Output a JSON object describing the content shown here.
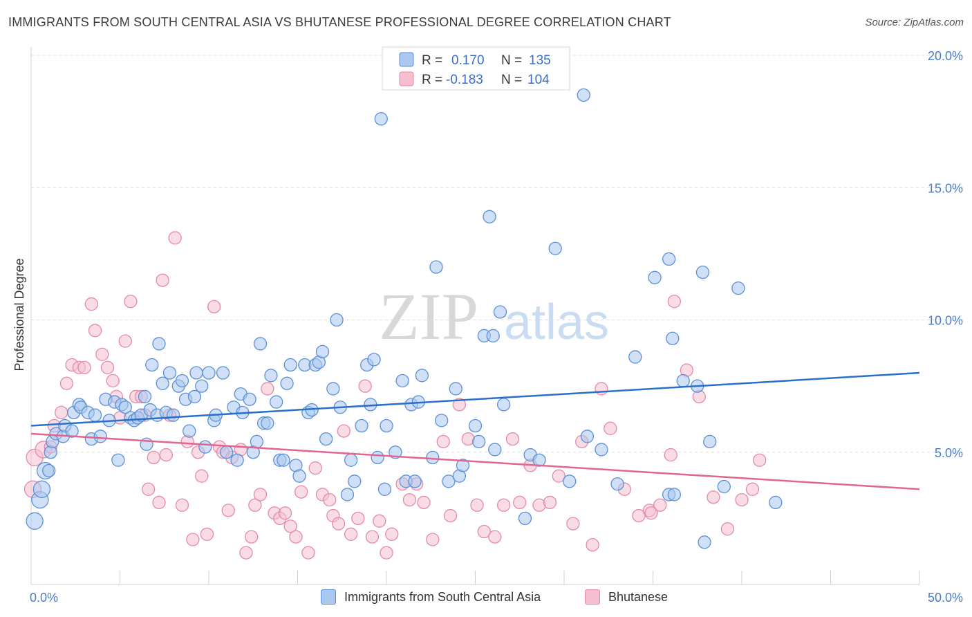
{
  "title": "IMMIGRANTS FROM SOUTH CENTRAL ASIA VS BHUTANESE PROFESSIONAL DEGREE CORRELATION CHART",
  "source": "Source: ZipAtlas.com",
  "watermark": {
    "zip": "ZIP",
    "atlas": "atlas"
  },
  "colors": {
    "blue_fill": "#aac8f0",
    "blue_stroke": "#5b8fd6",
    "blue_line": "#2a6fcb",
    "pink_fill": "#f6bfd0",
    "pink_stroke": "#e48aa8",
    "pink_line": "#e06690",
    "grid": "#dcdcdc",
    "tick_text": "#4a7cc7"
  },
  "legend": {
    "r_label": "R =",
    "n_label": "N =",
    "rows": [
      {
        "r": "0.170",
        "n": "135"
      },
      {
        "r": "-0.183",
        "n": "104"
      }
    ]
  },
  "chart_data": {
    "type": "scatter",
    "title": "IMMIGRANTS FROM SOUTH CENTRAL ASIA VS BHUTANESE PROFESSIONAL DEGREE CORRELATION CHART",
    "xlabel": "",
    "ylabel": "Professional Degree",
    "xlim": [
      0,
      50
    ],
    "ylim": [
      0,
      20
    ],
    "x_tick_labels": [
      "0.0%",
      "50.0%"
    ],
    "y_ticks": [
      5,
      10,
      15,
      20
    ],
    "y_tick_labels": [
      "5.0%",
      "10.0%",
      "15.0%",
      "20.0%"
    ],
    "grid": true,
    "legend_position": "top-center",
    "series": [
      {
        "name": "Immigrants from South Central Asia",
        "r": 0.17,
        "n": 135,
        "trend": [
          [
            0,
            6.0
          ],
          [
            50,
            8.0
          ]
        ],
        "points": [
          [
            0.2,
            2.4
          ],
          [
            0.5,
            3.2
          ],
          [
            0.6,
            3.6
          ],
          [
            0.8,
            4.3
          ],
          [
            1.0,
            4.3
          ],
          [
            1.1,
            5.0
          ],
          [
            1.2,
            5.4
          ],
          [
            1.4,
            5.7
          ],
          [
            1.8,
            5.6
          ],
          [
            1.9,
            6.0
          ],
          [
            2.3,
            5.8
          ],
          [
            2.4,
            6.5
          ],
          [
            2.7,
            6.8
          ],
          [
            2.8,
            6.7
          ],
          [
            3.2,
            6.5
          ],
          [
            3.4,
            5.5
          ],
          [
            3.6,
            6.4
          ],
          [
            3.9,
            5.6
          ],
          [
            4.2,
            7.0
          ],
          [
            4.4,
            6.2
          ],
          [
            4.7,
            6.9
          ],
          [
            4.9,
            4.7
          ],
          [
            5.1,
            6.8
          ],
          [
            5.3,
            6.7
          ],
          [
            5.6,
            6.3
          ],
          [
            5.8,
            6.2
          ],
          [
            6.0,
            6.3
          ],
          [
            6.2,
            6.4
          ],
          [
            6.4,
            7.1
          ],
          [
            6.5,
            5.3
          ],
          [
            6.7,
            6.6
          ],
          [
            6.8,
            8.3
          ],
          [
            7.1,
            6.4
          ],
          [
            7.2,
            9.1
          ],
          [
            7.4,
            7.6
          ],
          [
            7.6,
            6.5
          ],
          [
            7.8,
            8.0
          ],
          [
            8.0,
            6.4
          ],
          [
            8.3,
            7.5
          ],
          [
            8.5,
            7.7
          ],
          [
            8.7,
            7.0
          ],
          [
            8.9,
            5.8
          ],
          [
            9.2,
            7.1
          ],
          [
            9.3,
            8.0
          ],
          [
            9.6,
            7.5
          ],
          [
            9.8,
            5.2
          ],
          [
            10.0,
            8.0
          ],
          [
            10.3,
            6.2
          ],
          [
            10.4,
            6.4
          ],
          [
            10.8,
            8.0
          ],
          [
            11.0,
            5.0
          ],
          [
            11.4,
            6.7
          ],
          [
            11.6,
            4.7
          ],
          [
            11.8,
            7.2
          ],
          [
            11.9,
            6.5
          ],
          [
            12.3,
            7.0
          ],
          [
            12.5,
            5.0
          ],
          [
            12.7,
            5.4
          ],
          [
            12.9,
            9.1
          ],
          [
            13.1,
            6.1
          ],
          [
            13.3,
            6.1
          ],
          [
            13.5,
            7.9
          ],
          [
            13.8,
            6.9
          ],
          [
            14.0,
            4.7
          ],
          [
            14.2,
            4.7
          ],
          [
            14.4,
            7.6
          ],
          [
            14.6,
            8.3
          ],
          [
            14.9,
            4.5
          ],
          [
            15.1,
            4.1
          ],
          [
            15.4,
            8.3
          ],
          [
            15.6,
            6.5
          ],
          [
            15.8,
            6.6
          ],
          [
            16.0,
            8.3
          ],
          [
            16.2,
            8.4
          ],
          [
            16.4,
            8.8
          ],
          [
            16.6,
            5.5
          ],
          [
            17.0,
            7.4
          ],
          [
            17.2,
            10.0
          ],
          [
            17.4,
            6.7
          ],
          [
            17.8,
            3.4
          ],
          [
            18.0,
            4.7
          ],
          [
            18.2,
            3.9
          ],
          [
            18.6,
            6.0
          ],
          [
            18.9,
            8.3
          ],
          [
            19.1,
            6.8
          ],
          [
            19.3,
            8.5
          ],
          [
            19.5,
            4.8
          ],
          [
            19.7,
            17.6
          ],
          [
            19.9,
            3.6
          ],
          [
            20.0,
            6.0
          ],
          [
            20.5,
            5.0
          ],
          [
            20.9,
            7.7
          ],
          [
            21.1,
            3.9
          ],
          [
            21.4,
            6.8
          ],
          [
            21.6,
            3.9
          ],
          [
            21.8,
            6.9
          ],
          [
            22.0,
            7.9
          ],
          [
            22.6,
            4.8
          ],
          [
            22.8,
            12.0
          ],
          [
            23.1,
            6.2
          ],
          [
            23.5,
            3.9
          ],
          [
            23.9,
            7.4
          ],
          [
            24.1,
            4.1
          ],
          [
            24.3,
            4.5
          ],
          [
            25.0,
            6.0
          ],
          [
            25.2,
            5.4
          ],
          [
            25.5,
            9.4
          ],
          [
            25.8,
            13.9
          ],
          [
            26.0,
            9.4
          ],
          [
            26.1,
            5.1
          ],
          [
            26.4,
            10.3
          ],
          [
            26.6,
            6.8
          ],
          [
            27.8,
            2.5
          ],
          [
            28.1,
            4.9
          ],
          [
            28.6,
            4.7
          ],
          [
            29.5,
            12.7
          ],
          [
            30.3,
            3.9
          ],
          [
            31.1,
            18.5
          ],
          [
            31.3,
            5.6
          ],
          [
            32.1,
            5.1
          ],
          [
            33.0,
            3.8
          ],
          [
            34.0,
            8.6
          ],
          [
            35.1,
            11.6
          ],
          [
            35.9,
            12.3
          ],
          [
            36.1,
            9.3
          ],
          [
            35.9,
            3.4
          ],
          [
            36.7,
            7.7
          ],
          [
            37.5,
            7.5
          ],
          [
            37.8,
            11.8
          ],
          [
            38.2,
            5.4
          ],
          [
            37.9,
            1.6
          ],
          [
            39.0,
            3.7
          ],
          [
            39.8,
            11.2
          ],
          [
            41.9,
            3.1
          ],
          [
            36.2,
            3.4
          ]
        ]
      },
      {
        "name": "Bhutanese",
        "r": -0.183,
        "n": 104,
        "trend": [
          [
            0,
            5.7
          ],
          [
            50,
            3.6
          ]
        ],
        "points": [
          [
            0.1,
            3.6
          ],
          [
            0.2,
            4.8
          ],
          [
            0.7,
            5.1
          ],
          [
            1.1,
            5.2
          ],
          [
            1.3,
            6.0
          ],
          [
            1.7,
            6.5
          ],
          [
            2.0,
            7.6
          ],
          [
            2.3,
            8.3
          ],
          [
            2.7,
            8.2
          ],
          [
            3.0,
            8.2
          ],
          [
            3.4,
            10.6
          ],
          [
            3.6,
            9.6
          ],
          [
            4.0,
            8.7
          ],
          [
            4.3,
            8.2
          ],
          [
            4.6,
            7.7
          ],
          [
            4.8,
            7.1
          ],
          [
            5.0,
            6.3
          ],
          [
            5.3,
            9.2
          ],
          [
            5.6,
            10.7
          ],
          [
            5.9,
            7.1
          ],
          [
            6.2,
            7.1
          ],
          [
            6.4,
            6.4
          ],
          [
            6.6,
            3.6
          ],
          [
            6.9,
            4.8
          ],
          [
            7.2,
            3.1
          ],
          [
            7.4,
            11.5
          ],
          [
            7.6,
            4.9
          ],
          [
            7.8,
            6.4
          ],
          [
            8.1,
            13.1
          ],
          [
            8.5,
            3.0
          ],
          [
            8.8,
            5.4
          ],
          [
            9.1,
            1.7
          ],
          [
            9.4,
            5.0
          ],
          [
            9.6,
            4.1
          ],
          [
            9.9,
            1.9
          ],
          [
            10.3,
            10.5
          ],
          [
            10.6,
            5.2
          ],
          [
            10.8,
            5.0
          ],
          [
            11.1,
            2.8
          ],
          [
            11.3,
            4.8
          ],
          [
            11.8,
            5.1
          ],
          [
            12.1,
            1.2
          ],
          [
            12.4,
            1.8
          ],
          [
            12.6,
            3.0
          ],
          [
            12.9,
            3.4
          ],
          [
            13.3,
            7.4
          ],
          [
            13.7,
            2.7
          ],
          [
            14.0,
            2.5
          ],
          [
            14.3,
            2.7
          ],
          [
            14.6,
            2.2
          ],
          [
            14.9,
            1.8
          ],
          [
            15.2,
            3.5
          ],
          [
            15.6,
            1.2
          ],
          [
            16.0,
            4.4
          ],
          [
            16.4,
            3.4
          ],
          [
            16.8,
            3.2
          ],
          [
            17.0,
            2.6
          ],
          [
            17.3,
            2.3
          ],
          [
            17.6,
            5.8
          ],
          [
            18.0,
            1.9
          ],
          [
            18.4,
            2.5
          ],
          [
            18.8,
            7.5
          ],
          [
            19.2,
            1.8
          ],
          [
            19.6,
            2.4
          ],
          [
            20.0,
            1.2
          ],
          [
            20.3,
            1.9
          ],
          [
            20.9,
            3.8
          ],
          [
            21.3,
            3.2
          ],
          [
            21.7,
            3.8
          ],
          [
            22.1,
            3.1
          ],
          [
            22.6,
            1.7
          ],
          [
            23.2,
            5.4
          ],
          [
            23.6,
            2.6
          ],
          [
            24.1,
            6.8
          ],
          [
            24.6,
            5.5
          ],
          [
            25.1,
            3.0
          ],
          [
            25.5,
            2.0
          ],
          [
            26.1,
            1.8
          ],
          [
            26.6,
            3.0
          ],
          [
            27.1,
            5.5
          ],
          [
            27.5,
            3.1
          ],
          [
            28.1,
            4.5
          ],
          [
            28.6,
            3.0
          ],
          [
            29.2,
            3.1
          ],
          [
            29.7,
            4.1
          ],
          [
            30.5,
            2.3
          ],
          [
            31.0,
            5.4
          ],
          [
            31.6,
            1.5
          ],
          [
            32.1,
            7.4
          ],
          [
            32.6,
            5.9
          ],
          [
            33.4,
            3.6
          ],
          [
            34.2,
            2.6
          ],
          [
            34.8,
            2.8
          ],
          [
            35.4,
            3.0
          ],
          [
            36.2,
            10.7
          ],
          [
            36.9,
            8.1
          ],
          [
            37.6,
            7.1
          ],
          [
            38.4,
            3.3
          ],
          [
            39.2,
            2.1
          ],
          [
            40.0,
            3.2
          ],
          [
            40.6,
            3.6
          ],
          [
            34.9,
            2.7
          ],
          [
            36.0,
            4.9
          ],
          [
            41.0,
            4.7
          ]
        ]
      }
    ]
  },
  "bottom_legend": [
    "Immigrants from South Central Asia",
    "Bhutanese"
  ]
}
